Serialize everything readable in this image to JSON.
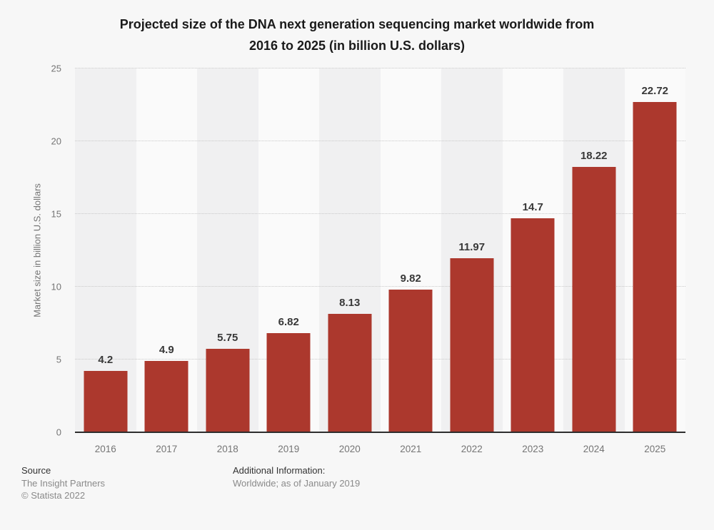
{
  "header": {
    "title_line1": "Projected size of the DNA next generation sequencing market worldwide from",
    "title_line2": "2016 to 2025 (in billion U.S. dollars)"
  },
  "chart_data": {
    "type": "bar",
    "title": "Projected size of the DNA next generation sequencing market worldwide from 2016 to 2025 (in billion U.S. dollars)",
    "categories": [
      "2016",
      "2017",
      "2018",
      "2019",
      "2020",
      "2021",
      "2022",
      "2023",
      "2024",
      "2025"
    ],
    "values": [
      4.2,
      4.9,
      5.75,
      6.82,
      8.13,
      9.82,
      11.97,
      14.7,
      18.22,
      22.72
    ],
    "value_labels": [
      "4.2",
      "4.9",
      "5.75",
      "6.82",
      "8.13",
      "9.82",
      "11.97",
      "14.7",
      "18.22",
      "22.72"
    ],
    "xlabel": "",
    "ylabel": "Market size in billion U.S. dollars",
    "ylim": [
      0,
      25
    ],
    "yticks": [
      0,
      5,
      10,
      15,
      20,
      25
    ],
    "grid": "horizontal-dotted",
    "legend": "none",
    "bar_color": "#ac382d"
  },
  "footer": {
    "source_label": "Source",
    "source_name": "The Insight Partners",
    "copyright": "© Statista 2022",
    "additional_info_label": "Additional Information:",
    "additional_info_value": "Worldwide; as of January 2019"
  }
}
